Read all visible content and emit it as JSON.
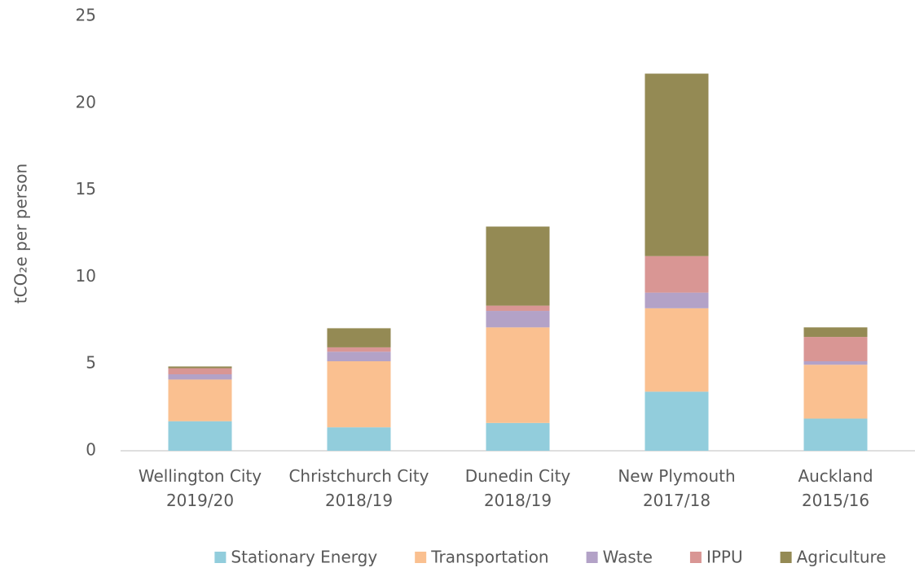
{
  "chart_data": {
    "type": "stacked_bar",
    "y_label": "tCO₂e per person",
    "categories": [
      "Wellington City\n2019/20",
      "Christchurch City\n2018/19",
      "Dunedin City\n2018/19",
      "New Plymouth\n2017/18",
      "Auckland\n2015/16"
    ],
    "series": [
      {
        "name": "Stationary Energy",
        "color": "#92cddc",
        "values": [
          1.7,
          1.35,
          1.6,
          3.4,
          1.85
        ]
      },
      {
        "name": "Transportation",
        "color": "#fac090",
        "values": [
          2.4,
          3.8,
          5.5,
          4.8,
          3.1
        ]
      },
      {
        "name": "Waste",
        "color": "#b3a2c7",
        "values": [
          0.3,
          0.55,
          0.95,
          0.9,
          0.2
        ]
      },
      {
        "name": "IPPU",
        "color": "#d99694",
        "values": [
          0.35,
          0.25,
          0.3,
          2.1,
          1.4
        ]
      },
      {
        "name": "Agriculture",
        "color": "#948a54",
        "values": [
          0.1,
          1.1,
          4.55,
          10.5,
          0.55
        ]
      }
    ],
    "ylim": [
      0,
      25
    ],
    "yticks": [
      0,
      5,
      10,
      15,
      20,
      25
    ],
    "grid": false,
    "legend": "bottom"
  }
}
